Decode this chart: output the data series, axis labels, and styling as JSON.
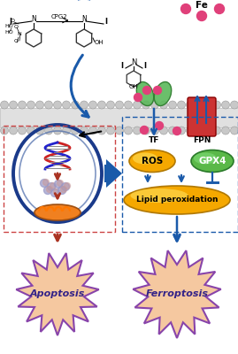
{
  "bg": "#ffffff",
  "blue": "#1a5aaa",
  "red": "#aa3322",
  "gold": "#f5a800",
  "gold_light": "#ffe566",
  "green": "#5ab848",
  "green_dark": "#2a7a2a",
  "pink": "#e0407a",
  "burst_fill": "#f5c8a0",
  "burst_stroke": "#8844aa",
  "mem_body": "#e0e0e0",
  "mem_head": "#c8c8c8",
  "mem_edge": "#999999",
  "dna_red": "#cc2222",
  "dna_blue": "#2222cc",
  "cell_outer": "#1a3a8a",
  "cell_inner": "#4a6aaa",
  "mit_orange": "#f08020",
  "mit_dark": "#a05010",
  "fpn_red": "#cc3333",
  "fpn_dark": "#880000",
  "ros_text": "ROS",
  "gpx4_text": "GPX4",
  "lipid_text": "Lipid peroxidation",
  "tf_text": "TF",
  "fpn_text": "FPN",
  "fe_text": "Fe",
  "cpg2_text": "CPG2",
  "apoptosis_text": "Apoptosis",
  "ferroptosis_text": "Ferroptosis",
  "oh_text": "OH"
}
